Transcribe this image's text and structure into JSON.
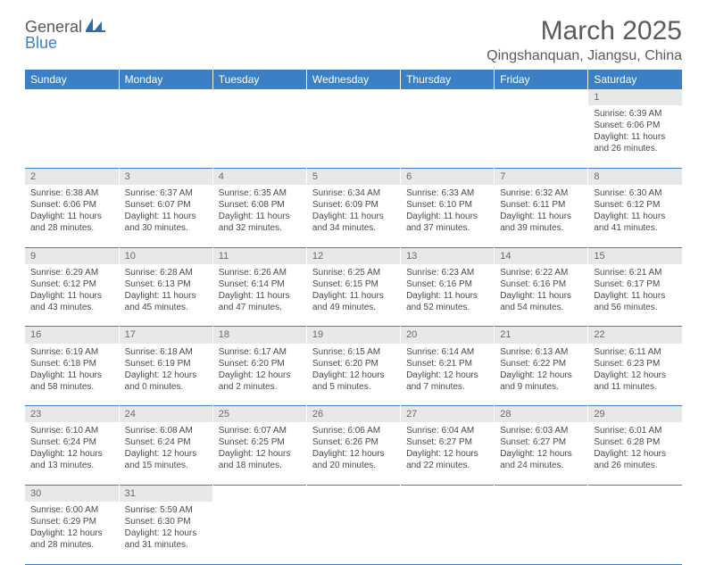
{
  "logo": {
    "text1": "General",
    "text2": "Blue"
  },
  "title": "March 2025",
  "location": "Qingshanquan, Jiangsu, China",
  "colors": {
    "header_bg": "#3b7fc4",
    "header_fg": "#ffffff",
    "daynum_bg": "#e8e8e8",
    "text": "#4a4a4a",
    "page_bg": "#ffffff"
  },
  "day_headers": [
    "Sunday",
    "Monday",
    "Tuesday",
    "Wednesday",
    "Thursday",
    "Friday",
    "Saturday"
  ],
  "weeks": [
    [
      null,
      null,
      null,
      null,
      null,
      null,
      {
        "n": "1",
        "sr": "Sunrise: 6:39 AM",
        "ss": "Sunset: 6:06 PM",
        "d1": "Daylight: 11 hours",
        "d2": "and 26 minutes."
      }
    ],
    [
      {
        "n": "2",
        "sr": "Sunrise: 6:38 AM",
        "ss": "Sunset: 6:06 PM",
        "d1": "Daylight: 11 hours",
        "d2": "and 28 minutes."
      },
      {
        "n": "3",
        "sr": "Sunrise: 6:37 AM",
        "ss": "Sunset: 6:07 PM",
        "d1": "Daylight: 11 hours",
        "d2": "and 30 minutes."
      },
      {
        "n": "4",
        "sr": "Sunrise: 6:35 AM",
        "ss": "Sunset: 6:08 PM",
        "d1": "Daylight: 11 hours",
        "d2": "and 32 minutes."
      },
      {
        "n": "5",
        "sr": "Sunrise: 6:34 AM",
        "ss": "Sunset: 6:09 PM",
        "d1": "Daylight: 11 hours",
        "d2": "and 34 minutes."
      },
      {
        "n": "6",
        "sr": "Sunrise: 6:33 AM",
        "ss": "Sunset: 6:10 PM",
        "d1": "Daylight: 11 hours",
        "d2": "and 37 minutes."
      },
      {
        "n": "7",
        "sr": "Sunrise: 6:32 AM",
        "ss": "Sunset: 6:11 PM",
        "d1": "Daylight: 11 hours",
        "d2": "and 39 minutes."
      },
      {
        "n": "8",
        "sr": "Sunrise: 6:30 AM",
        "ss": "Sunset: 6:12 PM",
        "d1": "Daylight: 11 hours",
        "d2": "and 41 minutes."
      }
    ],
    [
      {
        "n": "9",
        "sr": "Sunrise: 6:29 AM",
        "ss": "Sunset: 6:12 PM",
        "d1": "Daylight: 11 hours",
        "d2": "and 43 minutes."
      },
      {
        "n": "10",
        "sr": "Sunrise: 6:28 AM",
        "ss": "Sunset: 6:13 PM",
        "d1": "Daylight: 11 hours",
        "d2": "and 45 minutes."
      },
      {
        "n": "11",
        "sr": "Sunrise: 6:26 AM",
        "ss": "Sunset: 6:14 PM",
        "d1": "Daylight: 11 hours",
        "d2": "and 47 minutes."
      },
      {
        "n": "12",
        "sr": "Sunrise: 6:25 AM",
        "ss": "Sunset: 6:15 PM",
        "d1": "Daylight: 11 hours",
        "d2": "and 49 minutes."
      },
      {
        "n": "13",
        "sr": "Sunrise: 6:23 AM",
        "ss": "Sunset: 6:16 PM",
        "d1": "Daylight: 11 hours",
        "d2": "and 52 minutes."
      },
      {
        "n": "14",
        "sr": "Sunrise: 6:22 AM",
        "ss": "Sunset: 6:16 PM",
        "d1": "Daylight: 11 hours",
        "d2": "and 54 minutes."
      },
      {
        "n": "15",
        "sr": "Sunrise: 6:21 AM",
        "ss": "Sunset: 6:17 PM",
        "d1": "Daylight: 11 hours",
        "d2": "and 56 minutes."
      }
    ],
    [
      {
        "n": "16",
        "sr": "Sunrise: 6:19 AM",
        "ss": "Sunset: 6:18 PM",
        "d1": "Daylight: 11 hours",
        "d2": "and 58 minutes."
      },
      {
        "n": "17",
        "sr": "Sunrise: 6:18 AM",
        "ss": "Sunset: 6:19 PM",
        "d1": "Daylight: 12 hours",
        "d2": "and 0 minutes."
      },
      {
        "n": "18",
        "sr": "Sunrise: 6:17 AM",
        "ss": "Sunset: 6:20 PM",
        "d1": "Daylight: 12 hours",
        "d2": "and 2 minutes."
      },
      {
        "n": "19",
        "sr": "Sunrise: 6:15 AM",
        "ss": "Sunset: 6:20 PM",
        "d1": "Daylight: 12 hours",
        "d2": "and 5 minutes."
      },
      {
        "n": "20",
        "sr": "Sunrise: 6:14 AM",
        "ss": "Sunset: 6:21 PM",
        "d1": "Daylight: 12 hours",
        "d2": "and 7 minutes."
      },
      {
        "n": "21",
        "sr": "Sunrise: 6:13 AM",
        "ss": "Sunset: 6:22 PM",
        "d1": "Daylight: 12 hours",
        "d2": "and 9 minutes."
      },
      {
        "n": "22",
        "sr": "Sunrise: 6:11 AM",
        "ss": "Sunset: 6:23 PM",
        "d1": "Daylight: 12 hours",
        "d2": "and 11 minutes."
      }
    ],
    [
      {
        "n": "23",
        "sr": "Sunrise: 6:10 AM",
        "ss": "Sunset: 6:24 PM",
        "d1": "Daylight: 12 hours",
        "d2": "and 13 minutes."
      },
      {
        "n": "24",
        "sr": "Sunrise: 6:08 AM",
        "ss": "Sunset: 6:24 PM",
        "d1": "Daylight: 12 hours",
        "d2": "and 15 minutes."
      },
      {
        "n": "25",
        "sr": "Sunrise: 6:07 AM",
        "ss": "Sunset: 6:25 PM",
        "d1": "Daylight: 12 hours",
        "d2": "and 18 minutes."
      },
      {
        "n": "26",
        "sr": "Sunrise: 6:06 AM",
        "ss": "Sunset: 6:26 PM",
        "d1": "Daylight: 12 hours",
        "d2": "and 20 minutes."
      },
      {
        "n": "27",
        "sr": "Sunrise: 6:04 AM",
        "ss": "Sunset: 6:27 PM",
        "d1": "Daylight: 12 hours",
        "d2": "and 22 minutes."
      },
      {
        "n": "28",
        "sr": "Sunrise: 6:03 AM",
        "ss": "Sunset: 6:27 PM",
        "d1": "Daylight: 12 hours",
        "d2": "and 24 minutes."
      },
      {
        "n": "29",
        "sr": "Sunrise: 6:01 AM",
        "ss": "Sunset: 6:28 PM",
        "d1": "Daylight: 12 hours",
        "d2": "and 26 minutes."
      }
    ],
    [
      {
        "n": "30",
        "sr": "Sunrise: 6:00 AM",
        "ss": "Sunset: 6:29 PM",
        "d1": "Daylight: 12 hours",
        "d2": "and 28 minutes."
      },
      {
        "n": "31",
        "sr": "Sunrise: 5:59 AM",
        "ss": "Sunset: 6:30 PM",
        "d1": "Daylight: 12 hours",
        "d2": "and 31 minutes."
      },
      null,
      null,
      null,
      null,
      null
    ]
  ]
}
